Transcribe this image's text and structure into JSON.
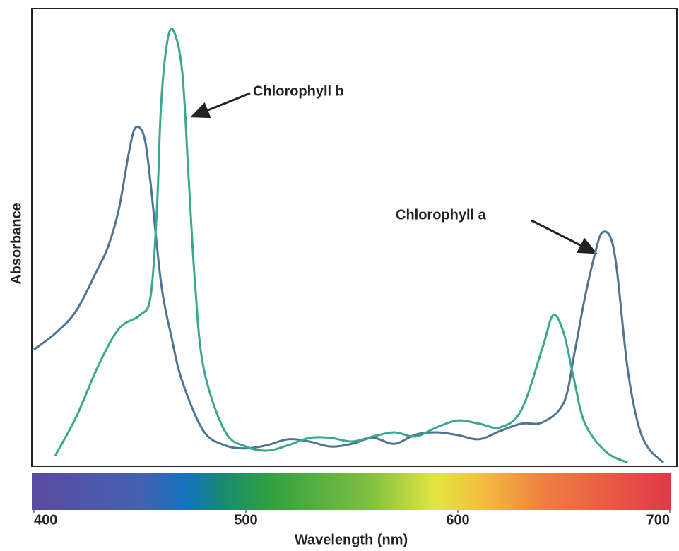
{
  "chart_data": {
    "type": "line",
    "x_label": "Wavelength (nm)",
    "y_label": "Absorbance",
    "xlim": [
      400,
      700
    ],
    "xticks": [
      400,
      500,
      600,
      700
    ],
    "ylim": [
      0,
      1
    ],
    "series": [
      {
        "name": "Chlorophyll a",
        "color": "#4d7593",
        "x": [
          400,
          410,
          420,
          430,
          435,
          440,
          445,
          448,
          452,
          455,
          460,
          465,
          470,
          480,
          490,
          500,
          510,
          520,
          530,
          540,
          550,
          560,
          570,
          580,
          590,
          600,
          610,
          620,
          630,
          640,
          650,
          655,
          660,
          665,
          668,
          672,
          675,
          680,
          685,
          690,
          697
        ],
        "values": [
          0.255,
          0.29,
          0.34,
          0.43,
          0.48,
          0.56,
          0.69,
          0.74,
          0.72,
          0.62,
          0.4,
          0.28,
          0.185,
          0.077,
          0.046,
          0.039,
          0.046,
          0.059,
          0.054,
          0.043,
          0.049,
          0.062,
          0.049,
          0.069,
          0.074,
          0.068,
          0.059,
          0.077,
          0.093,
          0.096,
          0.139,
          0.247,
          0.37,
          0.47,
          0.51,
          0.5,
          0.43,
          0.216,
          0.093,
          0.039,
          0.008
        ]
      },
      {
        "name": "Chlorophyll b",
        "color": "#3aa88e",
        "x": [
          410,
          420,
          430,
          440,
          450,
          455,
          458,
          460,
          463,
          466,
          470,
          473,
          476,
          480,
          490,
          500,
          510,
          520,
          530,
          540,
          550,
          560,
          570,
          580,
          590,
          600,
          610,
          620,
          630,
          640,
          645,
          650,
          655,
          660,
          670,
          680
        ],
        "values": [
          0.023,
          0.108,
          0.216,
          0.3,
          0.33,
          0.37,
          0.56,
          0.79,
          0.93,
          0.95,
          0.86,
          0.63,
          0.4,
          0.216,
          0.077,
          0.043,
          0.034,
          0.046,
          0.062,
          0.062,
          0.054,
          0.065,
          0.074,
          0.065,
          0.085,
          0.1,
          0.093,
          0.085,
          0.123,
          0.26,
          0.33,
          0.29,
          0.185,
          0.093,
          0.031,
          0.008
        ]
      }
    ]
  }
}
